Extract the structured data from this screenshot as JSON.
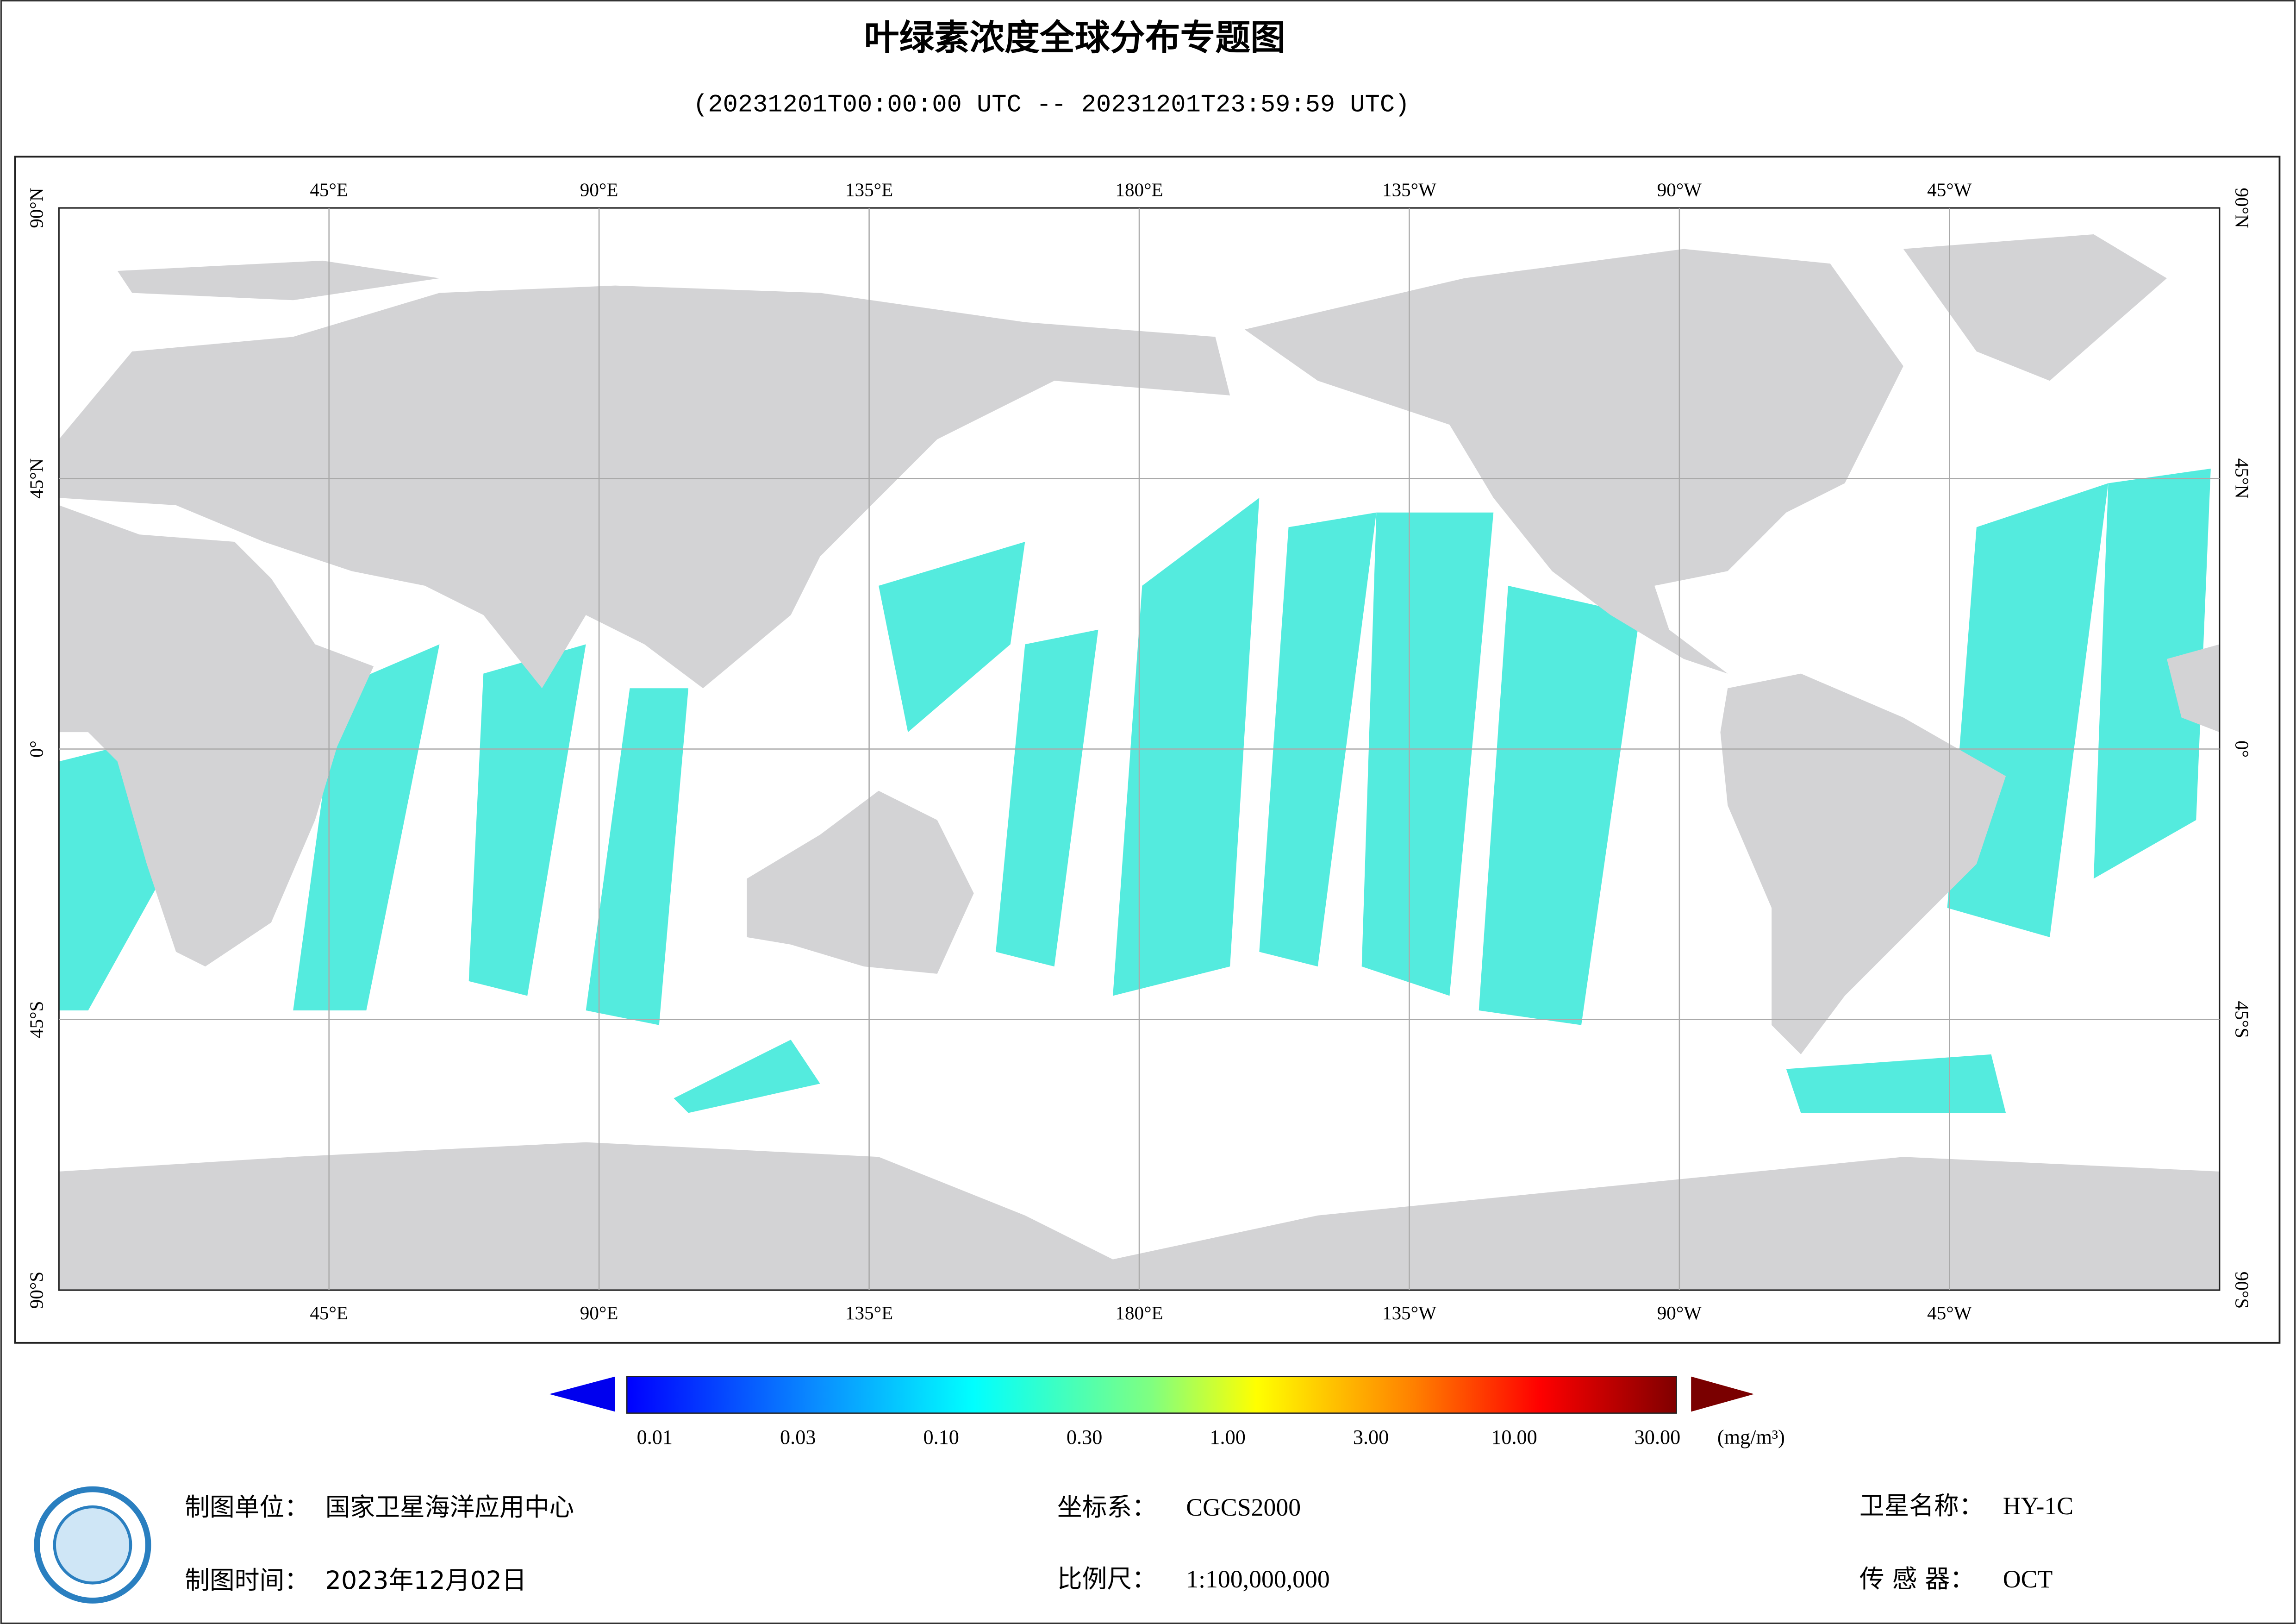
{
  "header": {
    "title": "叶绿素浓度全球分布专题图",
    "subtitle": "(20231201T00:00:00 UTC -- 20231201T23:59:59 UTC)"
  },
  "map": {
    "lon_labels": [
      "45°E",
      "90°E",
      "135°E",
      "180°E",
      "135°W",
      "90°W",
      "45°W"
    ],
    "lat_labels": [
      "90°N",
      "45°N",
      "0°",
      "45°S",
      "90°S"
    ]
  },
  "colorbar": {
    "labels": [
      "0.01",
      "0.03",
      "0.10",
      "0.30",
      "1.00",
      "3.00",
      "10.00",
      "30.00"
    ],
    "unit": "(mg/m³)"
  },
  "footer": {
    "unit_label": "制图单位：",
    "unit": "国家卫星海洋应用中心",
    "time_label": "制图时间：",
    "time": "2023年12月02日",
    "crs_label": "坐标系：",
    "crs": "CGCS2000",
    "scale_label": "比例尺：",
    "scale": "1:100,000,000",
    "satellite_label": "卫星名称：",
    "satellite": "HY-1C",
    "sensor_label": "传 感 器：",
    "sensor": "OCT"
  }
}
